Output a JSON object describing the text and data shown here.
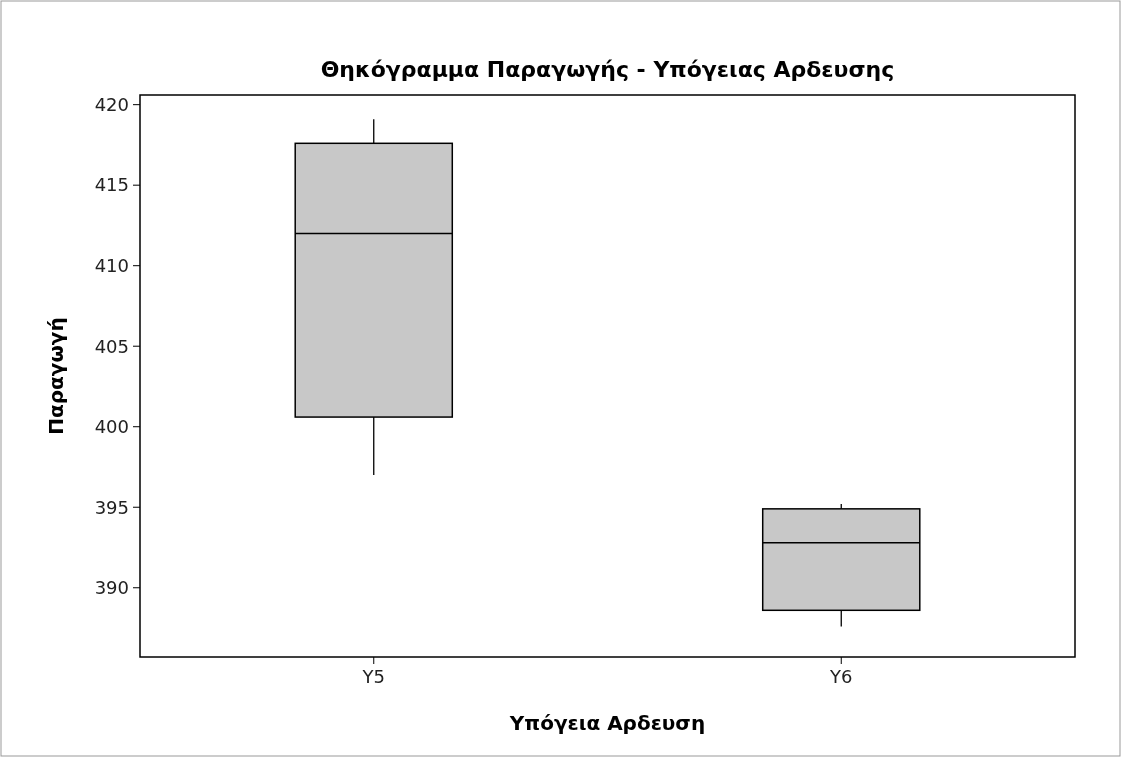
{
  "chart_data": {
    "type": "box",
    "title": "Θηκόγραμμα Παραγωγής - Υπόγειας Αρδευσης",
    "xlabel": "Υπόγεια Αρδευση",
    "ylabel": "Παραγωγή",
    "categories": [
      "Y5",
      "Y6"
    ],
    "boxes": [
      {
        "low": 397.0,
        "q1": 400.6,
        "median": 412.0,
        "q3": 417.6,
        "high": 419.1
      },
      {
        "low": 387.6,
        "q1": 388.6,
        "median": 392.8,
        "q3": 394.9,
        "high": 395.2
      }
    ],
    "color": "#c8c8c8",
    "ylim": [
      385.7,
      420.6
    ],
    "yticks": [
      390,
      395,
      400,
      405,
      410,
      415,
      420
    ]
  }
}
